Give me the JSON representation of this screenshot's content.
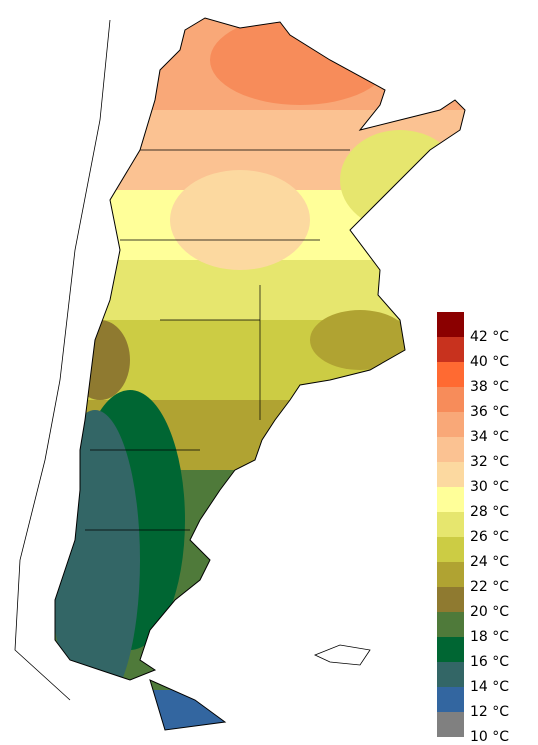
{
  "legend": {
    "labels": [
      "42 °C",
      "40 °C",
      "38 °C",
      "36 °C",
      "34 °C",
      "32 °C",
      "30 °C",
      "28 °C",
      "26 °C",
      "24 °C",
      "22 °C",
      "20 °C",
      "18 °C",
      "16 °C",
      "14 °C",
      "12 °C",
      "10 °C"
    ],
    "colors": [
      "#8b0000",
      "#c8321e",
      "#ff6a32",
      "#f78c5a",
      "#f9a878",
      "#fbc292",
      "#fcd9a0",
      "#ffff99",
      "#e6e66e",
      "#cccc44",
      "#b0a332",
      "#8f7a30",
      "#4f7a3a",
      "#006633",
      "#336666",
      "#3366a0",
      "#808080"
    ]
  }
}
